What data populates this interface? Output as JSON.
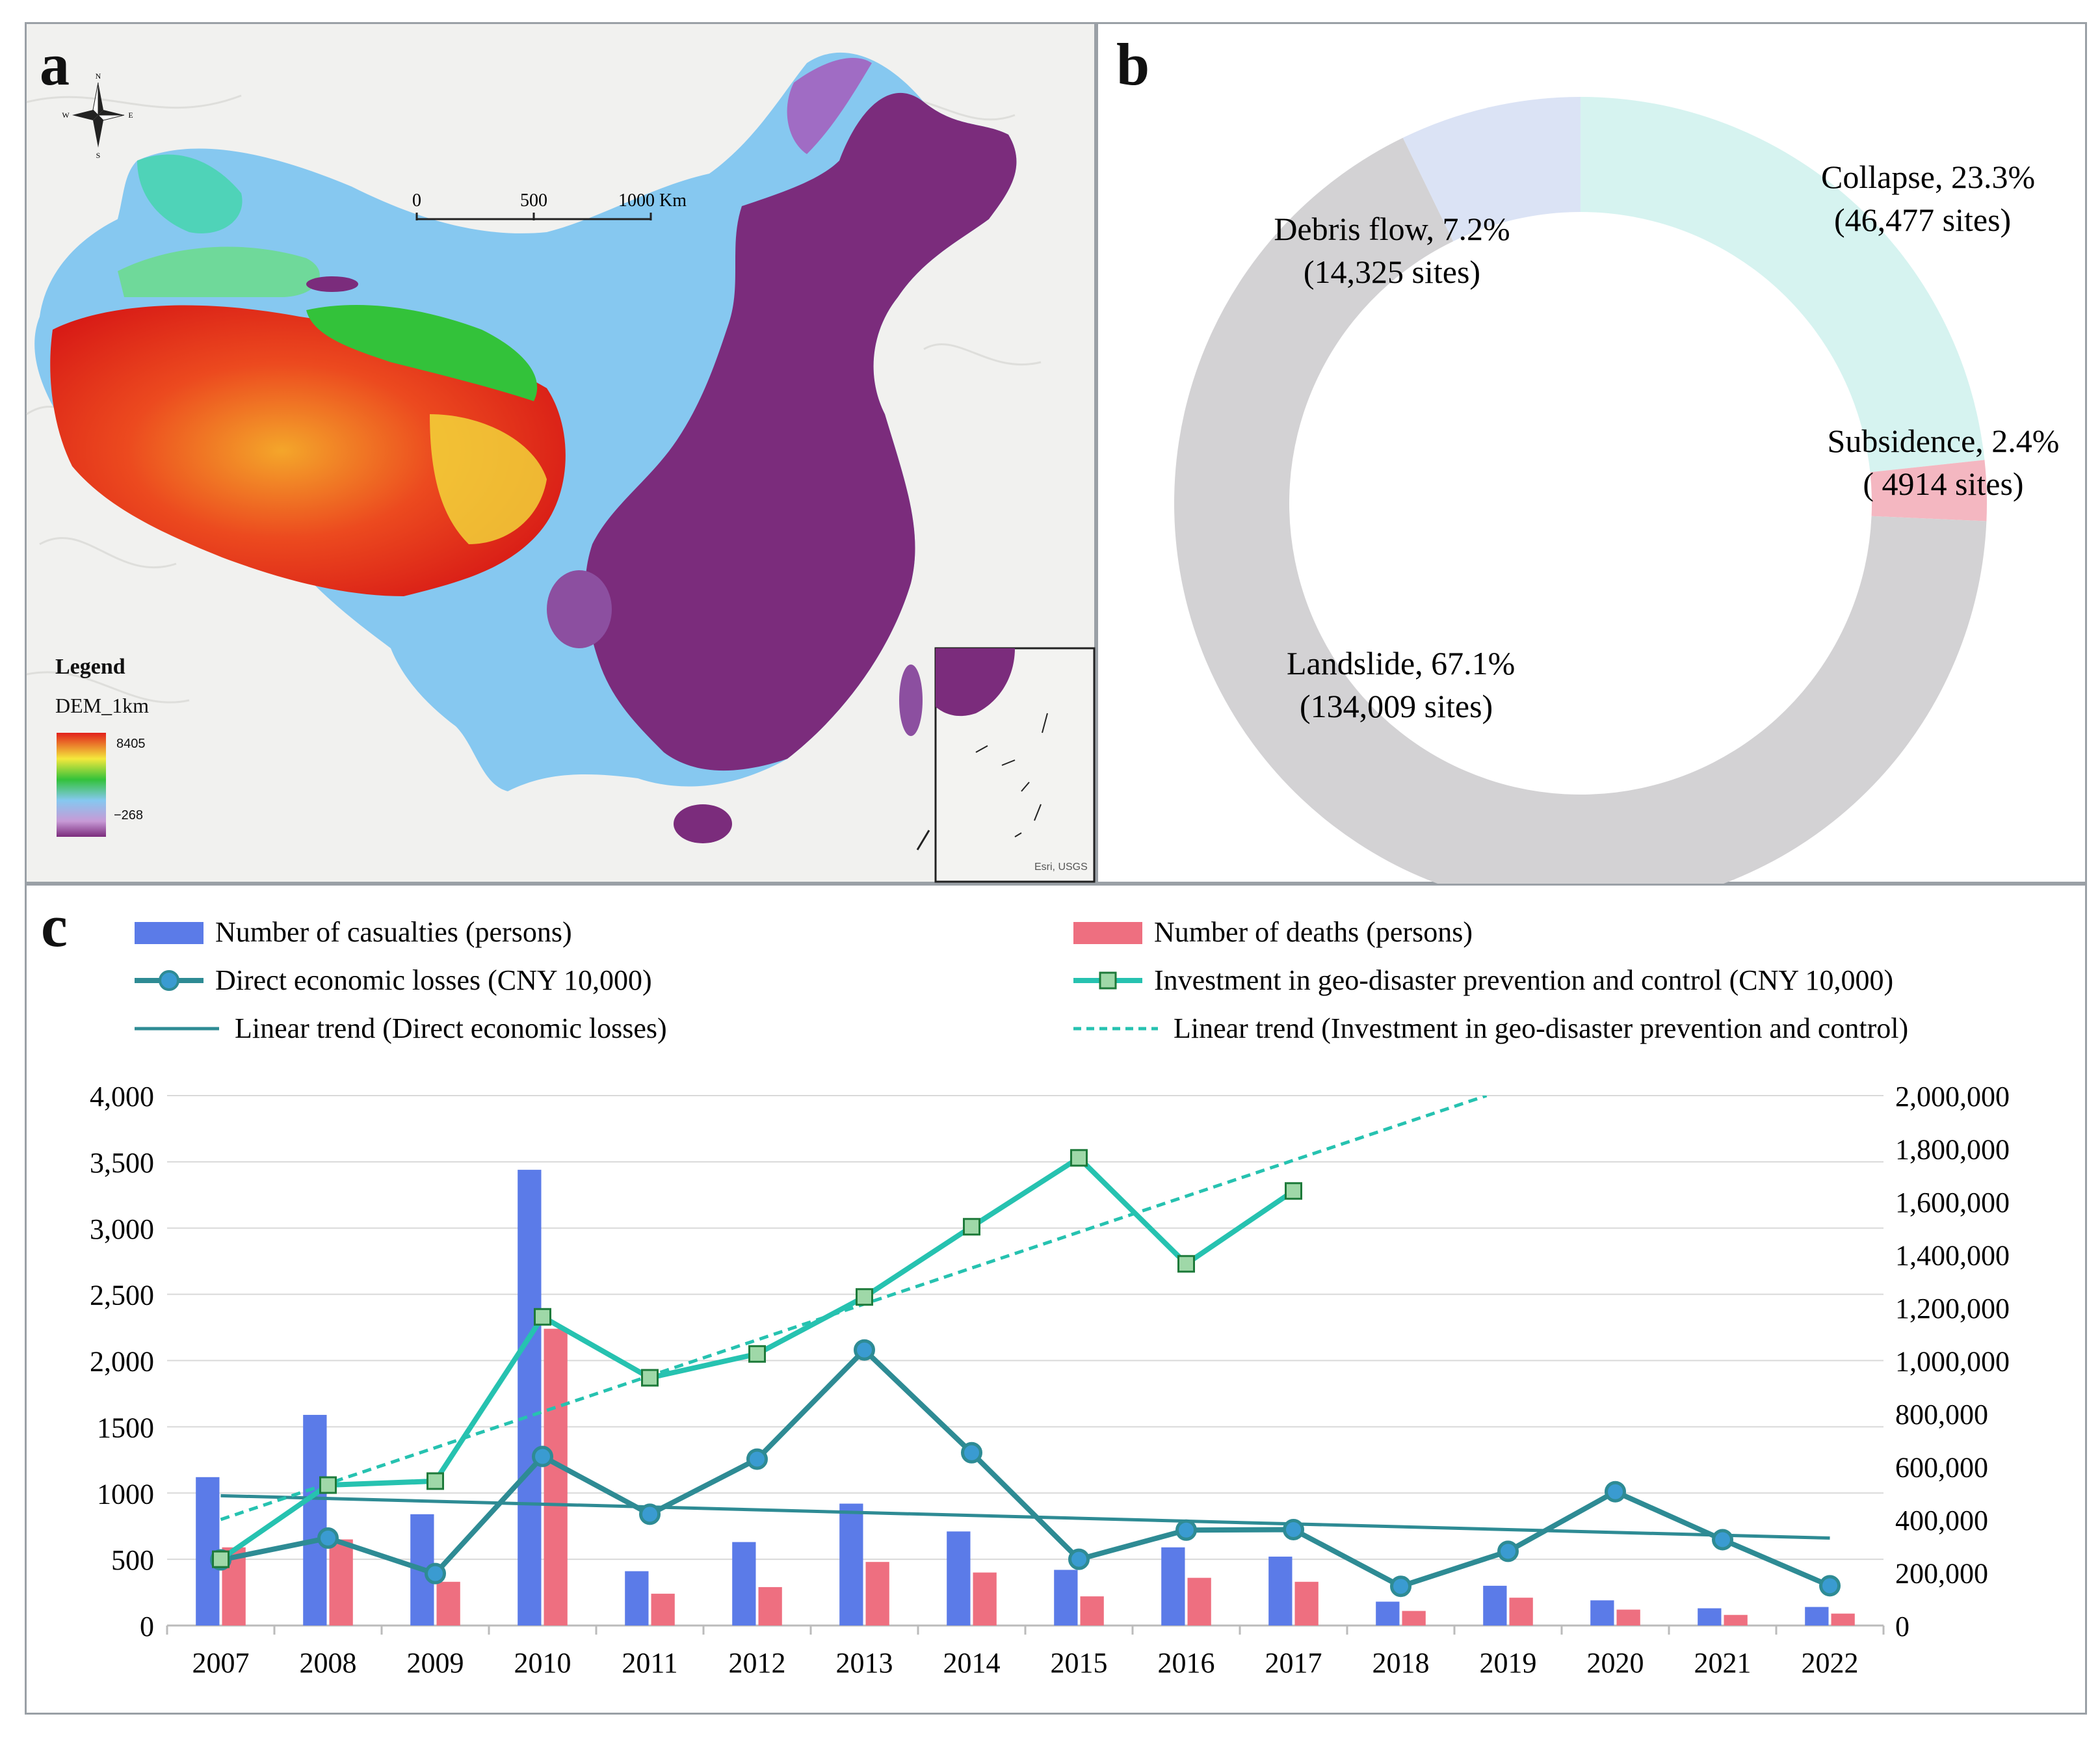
{
  "panel_a": {
    "letter": "a",
    "compass": {
      "n": "N",
      "s": "S",
      "e": "E",
      "w": "W"
    },
    "scale_bar": {
      "ticks": [
        "0",
        "500",
        "1000 Km"
      ]
    },
    "legend": {
      "title": "Legend",
      "layer": "DEM_1km",
      "max": "8405",
      "min": "−268"
    },
    "credit": "Esri, USGS",
    "colors": {
      "low": "#7b2c7c",
      "mid": "#86c8f0",
      "green": "#33c23a",
      "yellow": "#f4e83c",
      "high": "#e2201c"
    }
  },
  "panel_b": {
    "letter": "b"
  },
  "panel_c": {
    "letter": "c",
    "legend": {
      "casualties": "Number of casualties (persons)",
      "deaths": "Number of deaths (persons)",
      "losses": "Direct economic losses (CNY 10,000)",
      "investment": "Investment in geo-disaster prevention and control (CNY 10,000)",
      "trend_losses": "Linear trend (Direct economic losses)",
      "trend_investment": "Linear trend (Investment in geo-disaster prevention and control)"
    }
  },
  "chart_data": [
    {
      "type": "pie",
      "style": "donut",
      "slices": [
        {
          "label": "Collapse, 23.3%",
          "sub": "(46,477 sites)",
          "value": 23.3,
          "color": "#d6f3f0"
        },
        {
          "label": "Subsidence, 2.4%",
          "sub": "( 4914 sites)",
          "value": 2.4,
          "color": "#f4b7c1"
        },
        {
          "label": "Landslide,  67.1%",
          "sub": "(134,009 sites)",
          "value": 67.1,
          "color": "#d3d2d4"
        },
        {
          "label": "Debris flow,  7.2%",
          "sub": "(14,325 sites)",
          "value": 7.2,
          "color": "#dbe3f5"
        }
      ]
    },
    {
      "type": "bar",
      "categories": [
        "2007",
        "2008",
        "2009",
        "2010",
        "2011",
        "2012",
        "2013",
        "2014",
        "2015",
        "2016",
        "2017",
        "2018",
        "2019",
        "2020",
        "2021",
        "2022"
      ],
      "y_left": {
        "range": [
          0,
          4000
        ],
        "ticks": [
          "0",
          "500",
          "1000",
          "1500",
          "2,000",
          "2,500",
          "3,000",
          "3,500",
          "4,000"
        ],
        "tick_values": [
          0,
          500,
          1000,
          1500,
          2000,
          2500,
          3000,
          3500,
          4000
        ]
      },
      "y_right": {
        "range": [
          0,
          2000000
        ],
        "ticks": [
          "0",
          "200,000",
          "400,000",
          "600,000",
          "800,000",
          "1,000,000",
          "1,200,000",
          "1,400,000",
          "1,600,000",
          "1,800,000",
          "2,000,000"
        ],
        "tick_values": [
          0,
          200000,
          400000,
          600000,
          800000,
          1000000,
          1200000,
          1400000,
          1600000,
          1800000,
          2000000
        ]
      },
      "grid": true,
      "series": [
        {
          "name": "Number of casualties (persons)",
          "kind": "bar",
          "axis": "left",
          "color": "#5b7be8",
          "values": [
            1120,
            1590,
            840,
            3440,
            410,
            630,
            920,
            710,
            420,
            590,
            520,
            180,
            300,
            190,
            130,
            140
          ]
        },
        {
          "name": "Number of deaths (persons)",
          "kind": "bar",
          "axis": "left",
          "color": "#ee6f80",
          "values": [
            590,
            650,
            330,
            2240,
            240,
            290,
            480,
            400,
            220,
            360,
            330,
            110,
            210,
            120,
            80,
            90
          ]
        },
        {
          "name": "Direct economic losses (CNY 10,000)",
          "kind": "line",
          "axis": "right",
          "color": "#2e8b94",
          "marker": "circle",
          "values": [
            247700,
            330000,
            196000,
            638000,
            420000,
            628000,
            1040000,
            652000,
            250000,
            360000,
            362000,
            148000,
            280000,
            505000,
            324000,
            150000
          ]
        },
        {
          "name": "Investment in geo-disaster prevention and control (CNY 10,000)",
          "kind": "line",
          "axis": "right",
          "color": "#26c2b0",
          "marker": "square",
          "values": [
            250000,
            530000,
            545000,
            1165000,
            935000,
            1025000,
            1240000,
            1505000,
            1765000,
            1365000,
            1640000,
            null,
            null,
            null,
            null,
            null
          ]
        },
        {
          "name": "Linear trend (Direct economic losses)",
          "kind": "trend",
          "axis": "right",
          "color": "#2e8b94",
          "dash": false,
          "from": {
            "x": "2007",
            "y": 490000
          },
          "to": {
            "x": "2022",
            "y": 330000
          }
        },
        {
          "name": "Linear trend (Investment in geo-disaster prevention and control)",
          "kind": "trend",
          "axis": "right",
          "color": "#26c2b0",
          "dash": true,
          "from": {
            "x": "2007",
            "y": 400000
          },
          "to": {
            "x": "2018.8",
            "y": 2000000
          }
        }
      ]
    }
  ]
}
